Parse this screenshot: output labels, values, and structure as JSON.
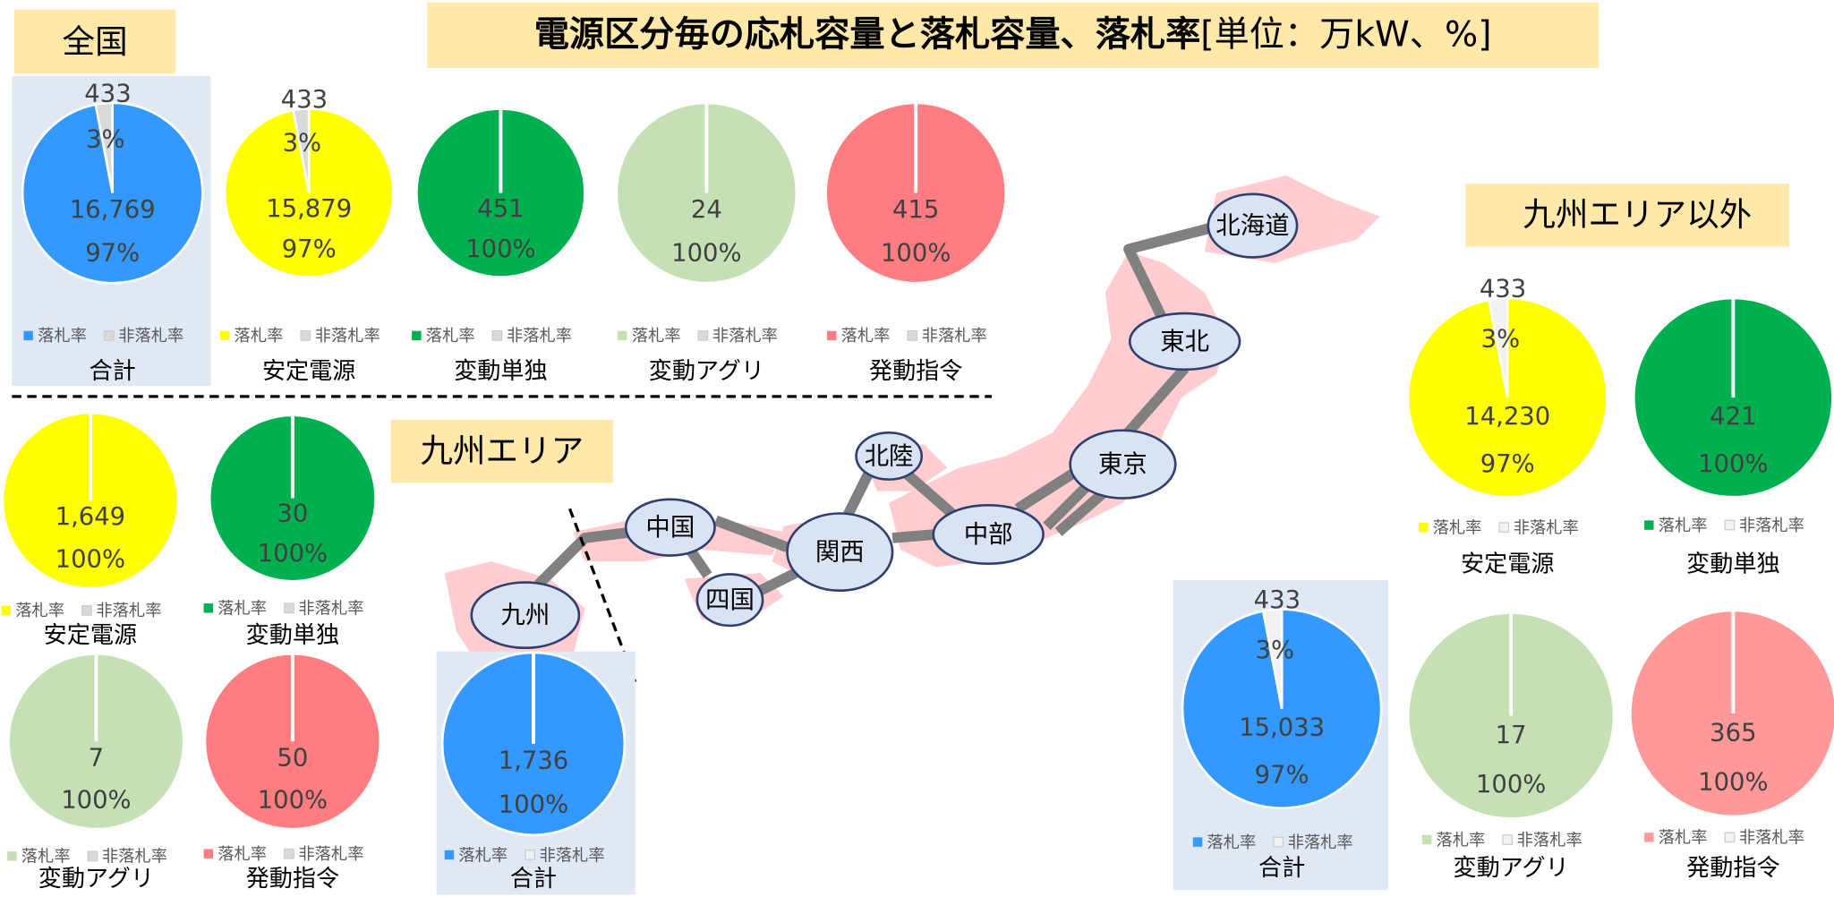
{
  "header": {
    "title_bold": "電源区分毎の応札容量と落札容量、落札率",
    "title_unit": "[単位：万kW、%]"
  },
  "sections": {
    "national": "全国",
    "kyushu": "九州エリア",
    "other": "九州エリア以外"
  },
  "map": {
    "nodes": [
      "北海道",
      "東北",
      "北陸",
      "東京",
      "中部",
      "関西",
      "中国",
      "四国",
      "九州"
    ]
  },
  "chart_data": [
    {
      "type": "pie",
      "title": "合計",
      "categories": [
        "落札率",
        "非落札率"
      ],
      "values": [
        97,
        3
      ],
      "value_labels": [
        "97%",
        "3%"
      ],
      "amounts": [
        16769,
        433
      ],
      "amount_labels": [
        "16,769",
        "433"
      ],
      "colors": [
        "#3399ff",
        "#d9d9d9"
      ]
    },
    {
      "type": "pie",
      "title": "安定電源",
      "categories": [
        "落札率",
        "非落札率"
      ],
      "values": [
        97,
        3
      ],
      "value_labels": [
        "97%",
        "3%"
      ],
      "amounts": [
        15879,
        433
      ],
      "amount_labels": [
        "15,879",
        "433"
      ],
      "colors": [
        "#ffff00",
        "#d9d9d9"
      ]
    },
    {
      "type": "pie",
      "title": "変動単独",
      "categories": [
        "落札率",
        "非落札率"
      ],
      "values": [
        100,
        0
      ],
      "value_labels": [
        "100%",
        null
      ],
      "amounts": [
        451,
        null
      ],
      "amount_labels": [
        "451",
        null
      ],
      "colors": [
        "#00b050",
        "#d9d9d9"
      ]
    },
    {
      "type": "pie",
      "title": "変動アグリ",
      "categories": [
        "落札率",
        "非落札率"
      ],
      "values": [
        100,
        0
      ],
      "value_labels": [
        "100%",
        null
      ],
      "amounts": [
        24,
        null
      ],
      "amount_labels": [
        "24",
        null
      ],
      "colors": [
        "#c5e0b4",
        "#d9d9d9"
      ]
    },
    {
      "type": "pie",
      "title": "発動指令",
      "categories": [
        "落札率",
        "非落札率"
      ],
      "values": [
        100,
        0
      ],
      "value_labels": [
        "100%",
        null
      ],
      "amounts": [
        415,
        null
      ],
      "amount_labels": [
        "415",
        null
      ],
      "colors": [
        "#ff7c80",
        "#d9d9d9"
      ]
    },
    {
      "type": "pie",
      "title": "安定電源",
      "categories": [
        "落札率",
        "非落札率"
      ],
      "values": [
        100,
        0
      ],
      "value_labels": [
        "100%",
        null
      ],
      "amounts": [
        1649,
        null
      ],
      "amount_labels": [
        "1,649",
        null
      ],
      "colors": [
        "#ffff00",
        "#d9d9d9"
      ]
    },
    {
      "type": "pie",
      "title": "変動単独",
      "categories": [
        "落札率",
        "非落札率"
      ],
      "values": [
        100,
        0
      ],
      "value_labels": [
        "100%",
        null
      ],
      "amounts": [
        30,
        null
      ],
      "amount_labels": [
        "30",
        null
      ],
      "colors": [
        "#00b050",
        "#d9d9d9"
      ]
    },
    {
      "type": "pie",
      "title": "変動アグリ",
      "categories": [
        "落札率",
        "非落札率"
      ],
      "values": [
        100,
        0
      ],
      "value_labels": [
        "100%",
        null
      ],
      "amounts": [
        7,
        null
      ],
      "amount_labels": [
        "7",
        null
      ],
      "colors": [
        "#c5e0b4",
        "#d9d9d9"
      ]
    },
    {
      "type": "pie",
      "title": "発動指令",
      "categories": [
        "落札率",
        "非落札率"
      ],
      "values": [
        100,
        0
      ],
      "value_labels": [
        "100%",
        null
      ],
      "amounts": [
        50,
        null
      ],
      "amount_labels": [
        "50",
        null
      ],
      "colors": [
        "#ff7c80",
        "#d9d9d9"
      ]
    },
    {
      "type": "pie",
      "title": "合計",
      "categories": [
        "落札率",
        "非落札率"
      ],
      "values": [
        100,
        0
      ],
      "value_labels": [
        "100%",
        null
      ],
      "amounts": [
        1736,
        null
      ],
      "amount_labels": [
        "1,736",
        null
      ],
      "colors": [
        "#3399ff",
        "#f2f2f2"
      ]
    },
    {
      "type": "pie",
      "title": "安定電源",
      "categories": [
        "落札率",
        "非落札率"
      ],
      "values": [
        97,
        3
      ],
      "value_labels": [
        "97%",
        "3%"
      ],
      "amounts": [
        14230,
        433
      ],
      "amount_labels": [
        "14,230",
        "433"
      ],
      "colors": [
        "#ffff00",
        "#f2f2f2"
      ]
    },
    {
      "type": "pie",
      "title": "変動単独",
      "categories": [
        "落札率",
        "非落札率"
      ],
      "values": [
        100,
        0
      ],
      "value_labels": [
        "100%",
        null
      ],
      "amounts": [
        421,
        null
      ],
      "amount_labels": [
        "421",
        null
      ],
      "colors": [
        "#00b050",
        "#f2f2f2"
      ]
    },
    {
      "type": "pie",
      "title": "合計",
      "categories": [
        "落札率",
        "非落札率"
      ],
      "values": [
        97,
        3
      ],
      "value_labels": [
        "97%",
        "3%"
      ],
      "amounts": [
        15033,
        433
      ],
      "amount_labels": [
        "15,033",
        "433"
      ],
      "colors": [
        "#3399ff",
        "#f2f2f2"
      ]
    },
    {
      "type": "pie",
      "title": "変動アグリ",
      "categories": [
        "落札率",
        "非落札率"
      ],
      "values": [
        100,
        0
      ],
      "value_labels": [
        "100%",
        null
      ],
      "amounts": [
        17,
        null
      ],
      "amount_labels": [
        "17",
        null
      ],
      "colors": [
        "#c5e0b4",
        "#f2f2f2"
      ]
    },
    {
      "type": "pie",
      "title": "発動指令",
      "categories": [
        "落札率",
        "非落札率"
      ],
      "values": [
        100,
        0
      ],
      "value_labels": [
        "100%",
        null
      ],
      "amounts": [
        365,
        null
      ],
      "amount_labels": [
        "365",
        null
      ],
      "colors": [
        "#ff9999",
        "#f2f2f2"
      ]
    }
  ]
}
